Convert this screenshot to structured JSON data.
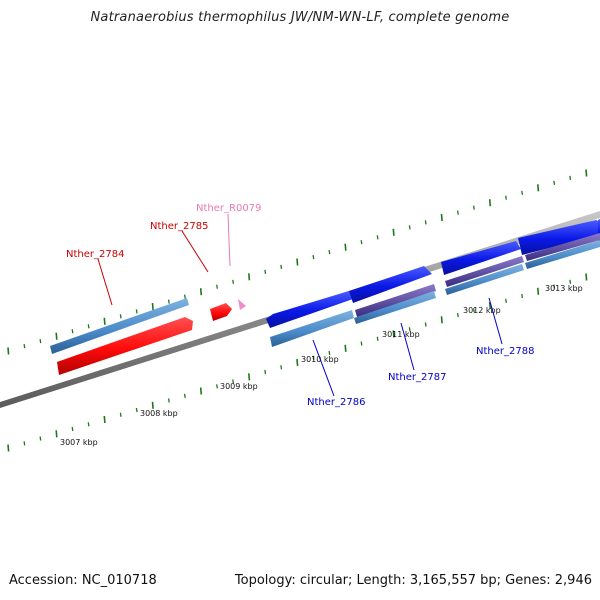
{
  "title": "Natranaerobius thermophilus JW/NM-WN-LF, complete genome",
  "footer": {
    "accession": "Accession: NC_010718",
    "topology": "Topology: circular; Length: 3,165,557 bp; Genes: 2,946"
  },
  "colors": {
    "backbone": "#8c8c8c",
    "tick_green": "#1a7a1a",
    "forward_gene": "#0a18e6",
    "reverse_gene": "#ff0a0a",
    "cds": "#4a8ac8",
    "rna": "#f08cc8",
    "label_blue": "#0000cc",
    "label_red": "#cc0000",
    "label_pink": "#e87ab4"
  },
  "scale_labels": [
    "3007 kbp",
    "3008 kbp",
    "3009 kbp",
    "3010 kbp",
    "3011 kbp",
    "3012 kbp",
    "3013 kbp"
  ],
  "gene_labels": [
    {
      "text": "Nther_2784",
      "color": "label_red"
    },
    {
      "text": "Nther_2785",
      "color": "label_red"
    },
    {
      "text": "Nther_R0079",
      "color": "label_pink"
    },
    {
      "text": "Nther_2786",
      "color": "label_blue"
    },
    {
      "text": "Nther_2787",
      "color": "label_blue"
    },
    {
      "text": "Nther_2788",
      "color": "label_blue"
    }
  ]
}
